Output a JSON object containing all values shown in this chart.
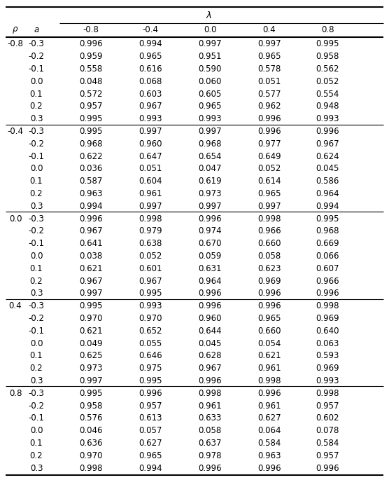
{
  "col_headers_lambda": [
    "-0.8",
    "-0.4",
    "0.0",
    "0.4",
    "0.8"
  ],
  "data": [
    [
      0.996,
      0.994,
      0.997,
      0.997,
      0.995
    ],
    [
      0.959,
      0.965,
      0.951,
      0.965,
      0.958
    ],
    [
      0.558,
      0.616,
      0.59,
      0.578,
      0.562
    ],
    [
      0.048,
      0.068,
      0.06,
      0.051,
      0.052
    ],
    [
      0.572,
      0.603,
      0.605,
      0.577,
      0.554
    ],
    [
      0.957,
      0.967,
      0.965,
      0.962,
      0.948
    ],
    [
      0.995,
      0.993,
      0.993,
      0.996,
      0.993
    ],
    [
      0.995,
      0.997,
      0.997,
      0.996,
      0.996
    ],
    [
      0.968,
      0.96,
      0.968,
      0.977,
      0.967
    ],
    [
      0.622,
      0.647,
      0.654,
      0.649,
      0.624
    ],
    [
      0.036,
      0.051,
      0.047,
      0.052,
      0.045
    ],
    [
      0.587,
      0.604,
      0.619,
      0.614,
      0.586
    ],
    [
      0.963,
      0.961,
      0.973,
      0.965,
      0.964
    ],
    [
      0.994,
      0.997,
      0.997,
      0.997,
      0.994
    ],
    [
      0.996,
      0.998,
      0.996,
      0.998,
      0.995
    ],
    [
      0.967,
      0.979,
      0.974,
      0.966,
      0.968
    ],
    [
      0.641,
      0.638,
      0.67,
      0.66,
      0.669
    ],
    [
      0.038,
      0.052,
      0.059,
      0.058,
      0.066
    ],
    [
      0.621,
      0.601,
      0.631,
      0.623,
      0.607
    ],
    [
      0.967,
      0.967,
      0.964,
      0.969,
      0.966
    ],
    [
      0.997,
      0.995,
      0.996,
      0.996,
      0.996
    ],
    [
      0.995,
      0.993,
      0.996,
      0.996,
      0.998
    ],
    [
      0.97,
      0.97,
      0.96,
      0.965,
      0.969
    ],
    [
      0.621,
      0.652,
      0.644,
      0.66,
      0.64
    ],
    [
      0.049,
      0.055,
      0.045,
      0.054,
      0.063
    ],
    [
      0.625,
      0.646,
      0.628,
      0.621,
      0.593
    ],
    [
      0.973,
      0.975,
      0.967,
      0.961,
      0.969
    ],
    [
      0.997,
      0.995,
      0.996,
      0.998,
      0.993
    ],
    [
      0.995,
      0.996,
      0.998,
      0.996,
      0.998
    ],
    [
      0.958,
      0.957,
      0.961,
      0.961,
      0.957
    ],
    [
      0.576,
      0.613,
      0.633,
      0.627,
      0.602
    ],
    [
      0.046,
      0.057,
      0.058,
      0.064,
      0.078
    ],
    [
      0.636,
      0.627,
      0.637,
      0.584,
      0.584
    ],
    [
      0.97,
      0.965,
      0.978,
      0.963,
      0.957
    ],
    [
      0.998,
      0.994,
      0.996,
      0.996,
      0.996
    ]
  ],
  "rho_values": [
    "-0.8",
    "-0.4",
    "0.0",
    "0.4",
    "0.8"
  ],
  "a_values": [
    "-0.3",
    "-0.2",
    "-0.1",
    "0.0",
    "0.1",
    "0.2",
    "0.3"
  ],
  "group_size": 7,
  "bg_color": "#ffffff",
  "text_color": "#000000",
  "font_size": 8.5,
  "header_font_size": 8.5
}
